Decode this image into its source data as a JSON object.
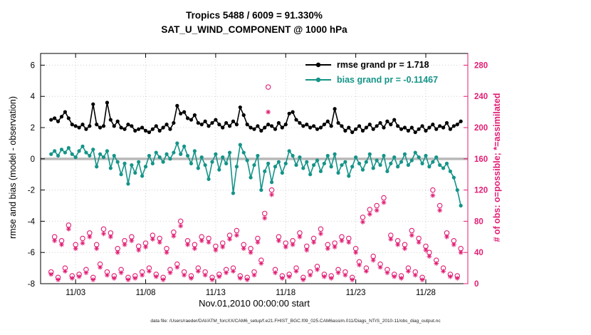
{
  "title": {
    "line1": "Tropics 5488 / 6009 = 91.330%",
    "line2": "SAT_U_WIND_COMPONENT @ 1000 hPa"
  },
  "legend": {
    "items": [
      {
        "label": "rmse grand pr = 1.718",
        "line_color": "#000000",
        "text_color": "#000000"
      },
      {
        "label": "bias grand pr = -0.11467",
        "line_color": "#159488",
        "text_color": "#159488"
      }
    ]
  },
  "axes": {
    "left_label": "rmse and bias (model - observation)",
    "right_label": "# of obs: o=possible; *=assimilated",
    "x_label": "Nov.01,2010 00:00:00 start"
  },
  "footer": {
    "text": "data file: /Users/raeder/DAI/ATM_forcXX/CAM6_setup/f.e21.FHIST_BGC.f09_025.CAM6assim.011/Diags_NTrS_2010-11/obs_diag_output.nc"
  },
  "chart_data": {
    "type": "line",
    "title": "Tropics 5488 / 6009 = 91.330%",
    "subtitle": "SAT_U_WIND_COMPONENT @ 1000 hPa",
    "xlabel": "Nov.01,2010 00:00:00 start",
    "ylabel_left": "rmse and bias (model - observation)",
    "ylabel_right": "# of obs: o=possible; *=assimilated",
    "grid": true,
    "legend_position": "top-right-inside",
    "x_unit": "day of November 2010",
    "x_range": [
      0.5,
      31
    ],
    "x_ticks": [
      3,
      8,
      13,
      18,
      23,
      28
    ],
    "x_tick_labels": [
      "11/03",
      "11/08",
      "11/13",
      "11/18",
      "11/23",
      "11/28"
    ],
    "left_ylim": [
      -8,
      6.75
    ],
    "left_yticks": [
      -8,
      -6,
      -4,
      -2,
      0,
      2,
      4,
      6
    ],
    "right_ylim": [
      0,
      295
    ],
    "right_yticks": [
      0,
      40,
      80,
      120,
      160,
      200,
      240,
      280
    ],
    "colors": {
      "rmse": "#000000",
      "bias": "#159488",
      "obs": "#e11d74",
      "zero_line": "#b8b8b8",
      "grid": "#cfcfcf"
    },
    "x": [
      1.25,
      1.5,
      1.75,
      2,
      2.25,
      2.5,
      2.75,
      3,
      3.25,
      3.5,
      3.75,
      4,
      4.25,
      4.5,
      4.75,
      5,
      5.25,
      5.5,
      5.75,
      6,
      6.25,
      6.5,
      6.75,
      7,
      7.25,
      7.5,
      7.75,
      8,
      8.25,
      8.5,
      8.75,
      9,
      9.25,
      9.5,
      9.75,
      10,
      10.25,
      10.5,
      10.75,
      11,
      11.25,
      11.5,
      11.75,
      12,
      12.25,
      12.5,
      12.75,
      13,
      13.25,
      13.5,
      13.75,
      14,
      14.25,
      14.5,
      14.75,
      15,
      15.25,
      15.5,
      15.75,
      16,
      16.25,
      16.5,
      16.75,
      17,
      17.25,
      17.5,
      17.75,
      18,
      18.25,
      18.5,
      18.75,
      19,
      19.25,
      19.5,
      19.75,
      20,
      20.25,
      20.5,
      20.75,
      21,
      21.25,
      21.5,
      21.75,
      22,
      22.25,
      22.5,
      22.75,
      23,
      23.25,
      23.5,
      23.75,
      24,
      24.25,
      24.5,
      24.75,
      25,
      25.25,
      25.5,
      25.75,
      26,
      26.25,
      26.5,
      26.75,
      27,
      27.25,
      27.5,
      27.75,
      28,
      28.25,
      28.5,
      28.75,
      29,
      29.25,
      29.5,
      29.75,
      30,
      30.25,
      30.5
    ],
    "series": [
      {
        "name": "rmse",
        "axis": "left",
        "marker": "filled-circle",
        "grand_value": 1.718,
        "values": [
          2.5,
          2.6,
          2.4,
          2.7,
          3.0,
          2.6,
          2.2,
          2.1,
          2.0,
          2.2,
          1.9,
          2.1,
          3.5,
          2.2,
          2.0,
          2.1,
          3.6,
          2.5,
          2.1,
          2.4,
          2.0,
          1.9,
          2.2,
          2.1,
          1.8,
          1.9,
          2.0,
          1.8,
          1.7,
          1.9,
          2.1,
          1.8,
          2.0,
          2.2,
          1.9,
          2.3,
          3.4,
          2.9,
          3.0,
          2.6,
          2.5,
          2.8,
          2.3,
          2.2,
          2.4,
          2.1,
          2.3,
          2.5,
          2.2,
          2.0,
          2.3,
          2.1,
          2.4,
          2.2,
          3.3,
          2.8,
          2.2,
          2.0,
          1.9,
          2.1,
          1.8,
          2.0,
          2.2,
          2.1,
          1.9,
          2.3,
          2.0,
          2.2,
          2.9,
          3.0,
          2.5,
          2.3,
          2.1,
          2.2,
          2.0,
          2.1,
          1.9,
          2.0,
          2.2,
          2.4,
          2.1,
          3.2,
          2.3,
          2.1,
          1.8,
          2.0,
          1.7,
          1.9,
          2.1,
          1.8,
          2.0,
          2.2,
          1.9,
          2.1,
          2.3,
          2.0,
          2.4,
          2.2,
          2.5,
          2.1,
          1.9,
          2.0,
          1.8,
          2.0,
          1.7,
          1.9,
          2.1,
          1.8,
          2.0,
          2.2,
          1.9,
          2.1,
          2.0,
          2.3,
          1.9,
          2.1,
          2.2,
          2.4
        ]
      },
      {
        "name": "bias",
        "axis": "left",
        "marker": "filled-circle",
        "grand_value": -0.11467,
        "values": [
          0.3,
          0.5,
          0.2,
          0.6,
          0.4,
          0.7,
          0.3,
          0.1,
          0.5,
          0.8,
          0.4,
          0.2,
          0.6,
          -0.5,
          0.3,
          0.1,
          0.5,
          -0.6,
          0.2,
          -0.2,
          -1.0,
          -0.3,
          -1.6,
          -0.4,
          -0.9,
          -0.2,
          -1.1,
          -0.5,
          0.2,
          -0.3,
          0.4,
          0.1,
          -0.2,
          0.3,
          0.0,
          0.4,
          1.0,
          0.3,
          0.8,
          0.2,
          -0.3,
          0.5,
          -0.6,
          0.1,
          -0.4,
          -1.3,
          -0.2,
          0.3,
          -0.7,
          0.1,
          -0.3,
          0.4,
          -2.2,
          -0.5,
          0.9,
          0.4,
          -0.1,
          -1.2,
          -0.4,
          0.2,
          -2.0,
          -0.8,
          -0.3,
          -1.5,
          -0.5,
          -0.2,
          -0.9,
          -0.3,
          0.5,
          0.2,
          -0.4,
          0.1,
          -0.6,
          -0.2,
          -1.0,
          -0.4,
          -0.1,
          -0.8,
          -0.3,
          0.2,
          -0.5,
          0.3,
          -0.9,
          -0.4,
          -0.2,
          -1.1,
          -0.5,
          0.1,
          -0.3,
          -0.7,
          -0.2,
          0.3,
          -0.6,
          -0.1,
          -0.4,
          0.2,
          -0.8,
          -0.3,
          0.1,
          -0.5,
          -0.2,
          0.3,
          -0.4,
          -0.1,
          0.4,
          0.1,
          -0.3,
          0.2,
          -0.5,
          -0.2,
          0.1,
          -0.4,
          -0.6,
          -0.3,
          -0.8,
          -1.2,
          -2.0,
          -3.0
        ]
      },
      {
        "name": "obs_possible",
        "axis": "right",
        "marker": "open-circle",
        "values": [
          15,
          60,
          8,
          55,
          20,
          75,
          10,
          50,
          12,
          58,
          18,
          65,
          8,
          50,
          25,
          70,
          15,
          65,
          10,
          45,
          18,
          55,
          8,
          60,
          10,
          48,
          15,
          52,
          20,
          62,
          12,
          58,
          8,
          45,
          18,
          66,
          25,
          80,
          15,
          55,
          10,
          50,
          20,
          60,
          15,
          58,
          8,
          48,
          12,
          52,
          18,
          62,
          20,
          68,
          10,
          50,
          8,
          45,
          15,
          58,
          30,
          90,
          252,
          120,
          18,
          60,
          10,
          52,
          12,
          55,
          20,
          65,
          8,
          48,
          15,
          58,
          22,
          70,
          12,
          50,
          10,
          52,
          18,
          60,
          15,
          58,
          8,
          45,
          28,
          85,
          20,
          95,
          35,
          100,
          25,
          110,
          18,
          62,
          12,
          55,
          10,
          50,
          20,
          68,
          15,
          58,
          8,
          48,
          40,
          120,
          30,
          100,
          20,
          65,
          12,
          55,
          10,
          45
        ]
      },
      {
        "name": "obs_assimilated",
        "axis": "right",
        "marker": "asterisk",
        "values": [
          12,
          55,
          5,
          50,
          16,
          70,
          7,
          45,
          9,
          52,
          14,
          60,
          5,
          45,
          21,
          64,
          11,
          60,
          7,
          40,
          14,
          50,
          5,
          55,
          7,
          43,
          11,
          47,
          16,
          57,
          9,
          53,
          5,
          40,
          14,
          61,
          21,
          74,
          11,
          50,
          7,
          45,
          16,
          55,
          11,
          53,
          5,
          43,
          9,
          47,
          14,
          57,
          16,
          62,
          7,
          45,
          5,
          40,
          11,
          53,
          26,
          84,
          220,
          114,
          14,
          55,
          7,
          47,
          9,
          50,
          16,
          60,
          5,
          43,
          11,
          53,
          18,
          64,
          9,
          45,
          7,
          47,
          14,
          55,
          11,
          53,
          5,
          40,
          24,
          79,
          16,
          89,
          30,
          94,
          21,
          104,
          14,
          57,
          9,
          50,
          7,
          45,
          16,
          62,
          11,
          53,
          5,
          43,
          35,
          113,
          26,
          94,
          16,
          60,
          9,
          50,
          7,
          40
        ]
      }
    ]
  }
}
